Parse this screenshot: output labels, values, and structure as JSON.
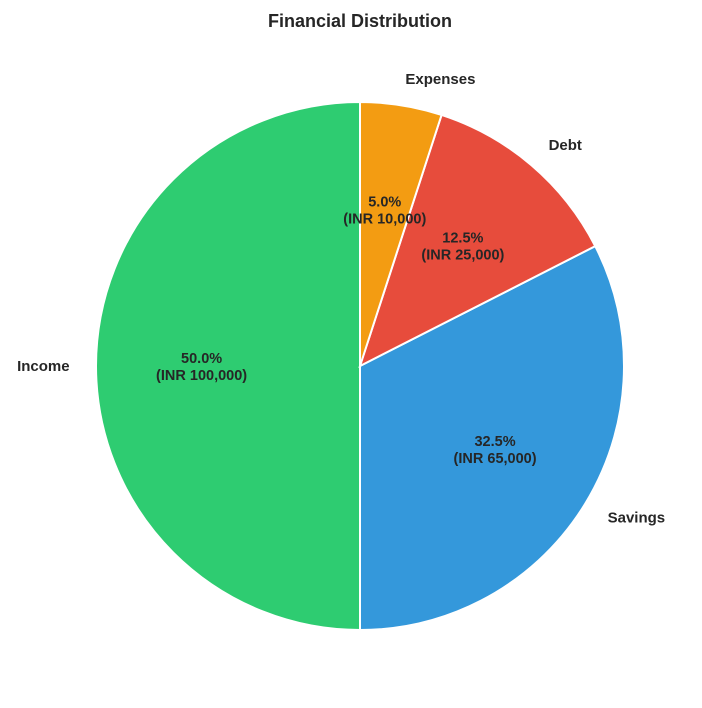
{
  "chart_data": {
    "type": "pie",
    "title": "Financial Distribution",
    "categories": [
      "Income",
      "Savings",
      "Debt",
      "Expenses"
    ],
    "values": [
      100000,
      65000,
      25000,
      10000
    ],
    "percent_labels": [
      "50.0%",
      "32.5%",
      "12.5%",
      "5.0%"
    ],
    "amount_labels": [
      "(INR 100,000)",
      "(INR 65,000)",
      "(INR 25,000)",
      "(INR 10,000)"
    ],
    "colors": [
      "#2ecc71",
      "#3498db",
      "#e74c3c",
      "#f39c12"
    ],
    "start_angle_degrees": 90,
    "direction": "counterclockwise",
    "legend": "none"
  }
}
